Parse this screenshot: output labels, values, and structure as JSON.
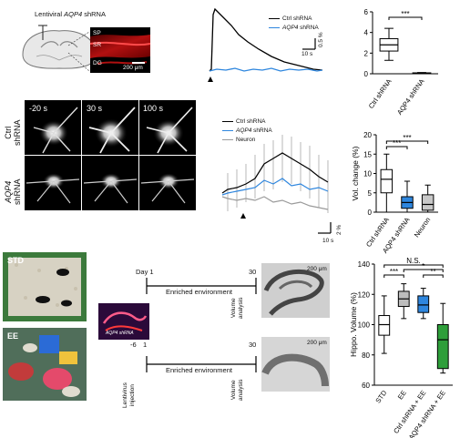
{
  "panelA": {
    "title_pre": "Lentiviral ",
    "title_gene": "AQP4",
    "title_post": " shRNA",
    "layers": [
      "SP",
      "SR",
      "DG"
    ],
    "scalebar": "200 μm"
  },
  "panelB": {
    "legend": [
      {
        "gene": "",
        "label": "Ctrl shRNA",
        "color": "#000000"
      },
      {
        "gene": "AQP4",
        "label": " shRNA",
        "color": "#2e86de"
      }
    ],
    "scale_y": "0.5 %",
    "scale_x": "10 s"
  },
  "panelC": {
    "chart_data": {
      "type": "box",
      "categories": [
        "Ctrl shRNA",
        "AQP4 shRNA"
      ],
      "ylim": [
        0,
        6
      ],
      "yticks": [
        "0",
        "2",
        "4",
        "6"
      ],
      "boxes": [
        {
          "min": 1.3,
          "q1": 2.2,
          "median": 2.8,
          "q3": 3.4,
          "max": 4.4,
          "color": "#ffffff"
        },
        {
          "min": 0.0,
          "q1": 0.02,
          "median": 0.05,
          "q3": 0.09,
          "max": 0.12,
          "color": "#ffffff"
        }
      ],
      "significance": "***"
    }
  },
  "panelD": {
    "time_labels": [
      "-20 s",
      "30 s",
      "100 s"
    ],
    "row_labels": [
      {
        "line1": "Ctrl",
        "line2": "shRNA",
        "gene": ""
      },
      {
        "line1": "AQP4",
        "line2": "shRNA",
        "gene": "AQP4"
      }
    ]
  },
  "panelE": {
    "legend": [
      {
        "gene": "",
        "label": "Ctrl shRNA",
        "color": "#000000"
      },
      {
        "gene": "AQP4",
        "label": " shRNA",
        "color": "#2e86de"
      },
      {
        "gene": "",
        "label": "Neuron",
        "color": "#9a9a9a"
      }
    ],
    "scale_y": "2 %",
    "scale_x": "10 s"
  },
  "panelF": {
    "chart_data": {
      "type": "box",
      "categories": [
        "Ctrl shRNA",
        "AQP4 shRNA",
        "Neuron"
      ],
      "ylabel": "Vol. change (%)",
      "ylim": [
        0,
        20
      ],
      "yticks": [
        "0",
        "5",
        "10",
        "15",
        "20"
      ],
      "boxes": [
        {
          "min": 0,
          "q1": 5,
          "median": 8.5,
          "q3": 11,
          "max": 15,
          "color": "#ffffff"
        },
        {
          "min": 0,
          "q1": 1,
          "median": 2.5,
          "q3": 4,
          "max": 8,
          "color": "#2e86de"
        },
        {
          "min": 0,
          "q1": 0.5,
          "median": 2,
          "q3": 4.5,
          "max": 7,
          "color": "#c8c8c8"
        }
      ],
      "significance": [
        "***",
        "***"
      ]
    }
  },
  "panelG": {
    "photo_labels": [
      "STD",
      "EE"
    ],
    "inset_label": "AQP4 shRNA",
    "timeline1": {
      "start": "Day 1",
      "end": "30",
      "label": "Enriched environment",
      "endnote": [
        "Volume",
        "analysis"
      ]
    },
    "timeline2": {
      "start": "-6",
      "mid": "1",
      "end": "30",
      "label": "Enriched environment",
      "startnote": [
        "Lentivirus",
        "injection"
      ],
      "endnote": [
        "Volume",
        "analysis"
      ]
    },
    "scalebar": "200 μm"
  },
  "panelH": {
    "chart_data": {
      "type": "box",
      "categories": [
        "STD",
        "EE",
        "Ctrl shRNA + EE",
        "AQP4 shRNA + EE"
      ],
      "ylabel": "Hippo. Volume (%)",
      "ylim": [
        60,
        140
      ],
      "yticks": [
        "60",
        "80",
        "100",
        "120",
        "140"
      ],
      "boxes": [
        {
          "min": 81,
          "q1": 93,
          "median": 100,
          "q3": 106,
          "max": 119,
          "color": "#ffffff"
        },
        {
          "min": 104,
          "q1": 112,
          "median": 117,
          "q3": 122,
          "max": 127,
          "color": "#bdbdbd"
        },
        {
          "min": 104,
          "q1": 108,
          "median": 113,
          "q3": 119,
          "max": 124,
          "color": "#2e86de"
        },
        {
          "min": 68,
          "q1": 71,
          "median": 90,
          "q3": 100,
          "max": 114,
          "color": "#2e9e3a"
        }
      ],
      "significance": [
        "***",
        "*",
        "**"
      ],
      "ns_label": "N.S."
    }
  }
}
